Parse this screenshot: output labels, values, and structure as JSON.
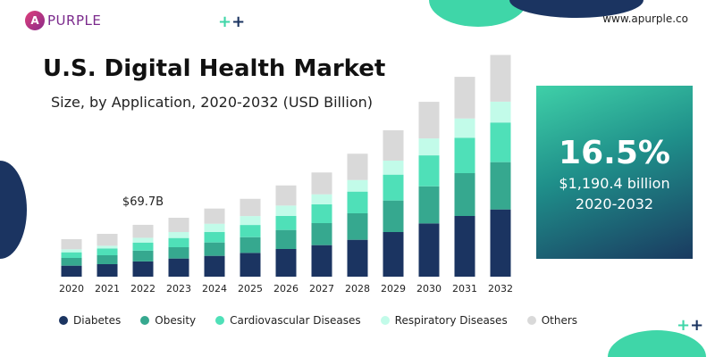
{
  "brand": {
    "logo_text": "PURPLE",
    "website": "www.apurple.co"
  },
  "kpi": {
    "cagr": "16.5%",
    "amount": "$1,190.4 billion",
    "range": "2020-2032"
  },
  "colors": {
    "Diabetes": "#1b3461",
    "Obesity": "#36a88f",
    "Cardiovascular Diseases": "#4fe0b8",
    "Respiratory Diseases": "#c2fbe9",
    "Others": "#d9d9d9"
  },
  "chart_data": {
    "type": "bar",
    "stacked": true,
    "title": "U.S. Digital Health Market",
    "subtitle": "Size, by Application, 2020-2032 (USD Billion)",
    "categories": [
      "2020",
      "2021",
      "2022",
      "2023",
      "2024",
      "2025",
      "2026",
      "2027",
      "2028",
      "2029",
      "2030",
      "2031",
      "2032"
    ],
    "annotation": {
      "category": "2022",
      "label": "$69.7B"
    },
    "legend_position": "bottom",
    "grid": false,
    "series": [
      {
        "name": "Diabetes",
        "values": [
          14.8,
          16.8,
          20.5,
          24.4,
          28.0,
          32.0,
          37.2,
          42.4,
          49.6,
          60.0,
          71.6,
          81.6,
          90.4
        ]
      },
      {
        "name": "Obesity",
        "values": [
          10.4,
          12.0,
          14.5,
          15.2,
          18.0,
          21.1,
          25.6,
          29.6,
          35.6,
          42.4,
          49.9,
          57.6,
          63.6
        ]
      },
      {
        "name": "Cardiovascular Diseases",
        "values": [
          7.6,
          9.2,
          10.9,
          12.4,
          14.0,
          16.4,
          18.8,
          25.2,
          29.2,
          34.8,
          41.6,
          47.6,
          53.3
        ]
      },
      {
        "name": "Respiratory Diseases",
        "values": [
          4.0,
          3.6,
          6.4,
          8.0,
          11.2,
          12.0,
          14.0,
          13.6,
          15.6,
          18.8,
          22.8,
          25.9,
          28.0
        ]
      },
      {
        "name": "Others",
        "values": [
          13.6,
          16.0,
          17.4,
          19.2,
          20.4,
          23.2,
          27.1,
          29.3,
          35.3,
          40.8,
          49.2,
          56.0,
          62.8
        ]
      }
    ]
  }
}
